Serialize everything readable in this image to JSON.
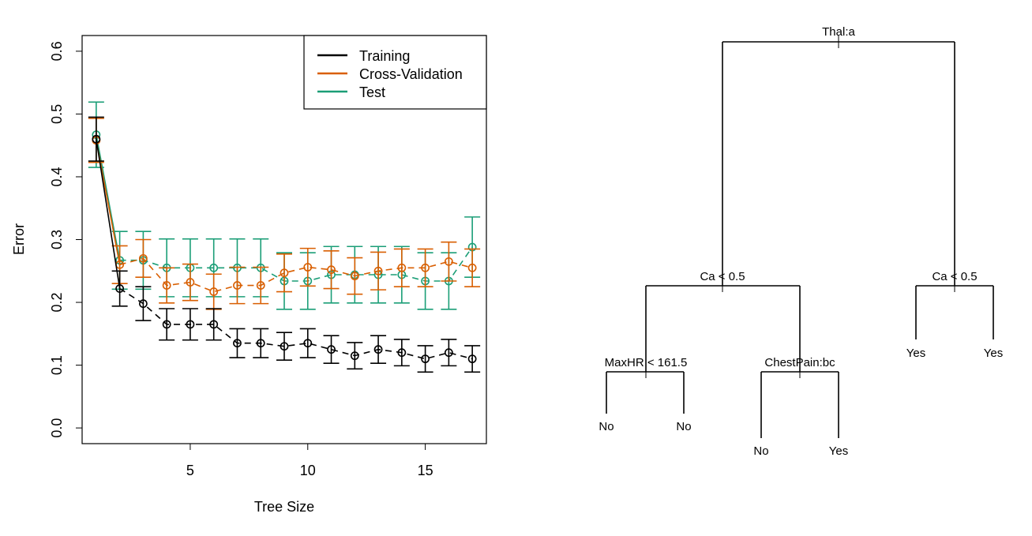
{
  "colors": {
    "training": "#000000",
    "cross_validation": "#D95F02",
    "test": "#1B9E77"
  },
  "chart_data": [
    {
      "type": "line",
      "xlabel": "Tree Size",
      "ylabel": "Error",
      "xlim": [
        0.4,
        17.6
      ],
      "ylim": [
        -0.025,
        0.625
      ],
      "xticks": [
        5,
        10,
        15
      ],
      "yticks": [
        0.0,
        0.1,
        0.2,
        0.3,
        0.4,
        0.5,
        0.6
      ],
      "xtick_labels": [
        "5",
        "10",
        "15"
      ],
      "ytick_labels": [
        "0.0",
        "0.1",
        "0.2",
        "0.3",
        "0.4",
        "0.5",
        "0.6"
      ],
      "grid": false,
      "legend": {
        "placement": "top-right"
      },
      "x": [
        1,
        2,
        3,
        4,
        5,
        6,
        7,
        8,
        9,
        10,
        11,
        12,
        13,
        14,
        15,
        16,
        17
      ],
      "series": [
        {
          "name": "Training",
          "color": "#000000",
          "values": [
            0.46,
            0.222,
            0.198,
            0.165,
            0.165,
            0.165,
            0.135,
            0.135,
            0.13,
            0.135,
            0.125,
            0.115,
            0.125,
            0.12,
            0.11,
            0.12,
            0.11
          ],
          "err": [
            0.035,
            0.028,
            0.027,
            0.025,
            0.025,
            0.025,
            0.023,
            0.023,
            0.022,
            0.023,
            0.022,
            0.021,
            0.022,
            0.021,
            0.021,
            0.021,
            0.021
          ]
        },
        {
          "name": "Cross-Validation",
          "color": "#D95F02",
          "values": [
            0.458,
            0.26,
            0.27,
            0.227,
            0.232,
            0.217,
            0.227,
            0.227,
            0.247,
            0.256,
            0.252,
            0.242,
            0.25,
            0.255,
            0.255,
            0.265,
            0.255
          ],
          "err": [
            0.035,
            0.03,
            0.03,
            0.028,
            0.029,
            0.028,
            0.029,
            0.029,
            0.03,
            0.03,
            0.03,
            0.029,
            0.03,
            0.03,
            0.03,
            0.031,
            0.03
          ]
        },
        {
          "name": "Test",
          "color": "#1B9E77",
          "values": [
            0.467,
            0.267,
            0.267,
            0.255,
            0.255,
            0.255,
            0.255,
            0.255,
            0.234,
            0.234,
            0.244,
            0.244,
            0.244,
            0.244,
            0.234,
            0.234,
            0.288
          ],
          "err": [
            0.052,
            0.046,
            0.046,
            0.046,
            0.046,
            0.046,
            0.046,
            0.046,
            0.045,
            0.045,
            0.045,
            0.045,
            0.045,
            0.045,
            0.045,
            0.045,
            0.048
          ]
        }
      ]
    },
    {
      "type": "tree",
      "nodes": [
        {
          "id": "root",
          "label": "Thal:a"
        },
        {
          "id": "L",
          "label": "Ca < 0.5",
          "parent": "root"
        },
        {
          "id": "R",
          "label": "Ca < 0.5",
          "parent": "root"
        },
        {
          "id": "LL",
          "label": "MaxHR < 161.5",
          "parent": "L"
        },
        {
          "id": "LR",
          "label": "ChestPain:bc",
          "parent": "L"
        },
        {
          "id": "LLa",
          "label": "No",
          "parent": "LL",
          "leaf": true
        },
        {
          "id": "LLb",
          "label": "No",
          "parent": "LL",
          "leaf": true
        },
        {
          "id": "LRa",
          "label": "No",
          "parent": "LR",
          "leaf": true
        },
        {
          "id": "LRb",
          "label": "Yes",
          "parent": "LR",
          "leaf": true
        },
        {
          "id": "Ra",
          "label": "Yes",
          "parent": "R",
          "leaf": true
        },
        {
          "id": "Rb",
          "label": "Yes",
          "parent": "R",
          "leaf": true
        }
      ]
    }
  ]
}
